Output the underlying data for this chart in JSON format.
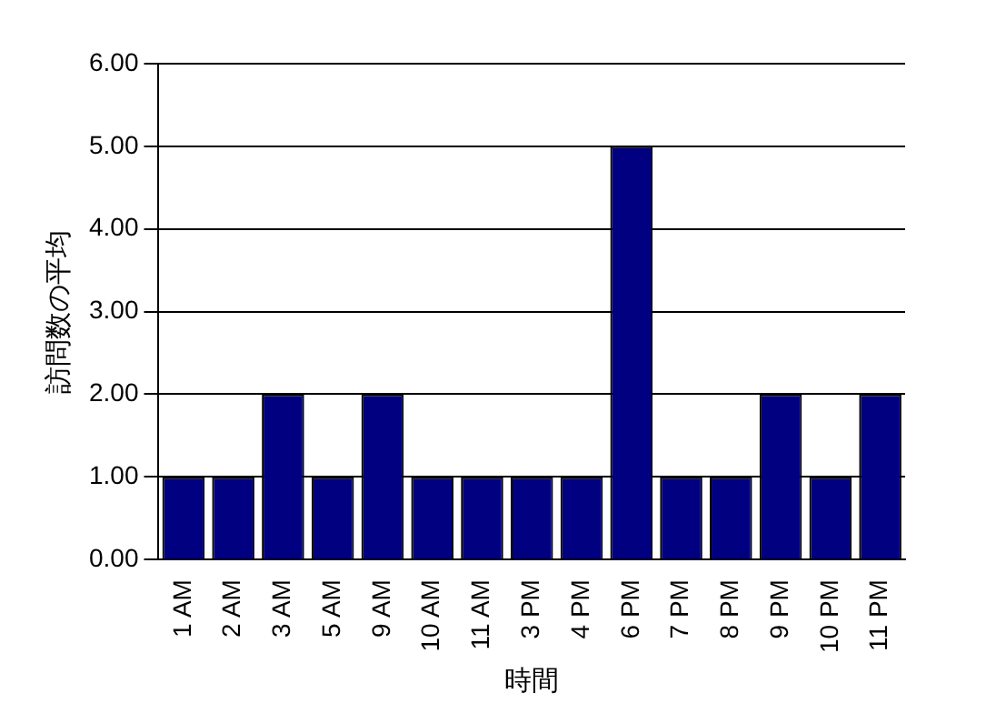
{
  "chart_data": {
    "type": "bar",
    "xlabel": "時間",
    "ylabel": "訪問数の平均",
    "categories": [
      "1 AM",
      "2 AM",
      "3 AM",
      "5 AM",
      "9 AM",
      "10 AM",
      "11 AM",
      "3 PM",
      "4 PM",
      "6 PM",
      "7 PM",
      "8 PM",
      "9 PM",
      "10 PM",
      "11 PM"
    ],
    "values": [
      1,
      1,
      2,
      1,
      2,
      1,
      1,
      1,
      1,
      5,
      1,
      1,
      2,
      1,
      2
    ],
    "color": "#000080",
    "ylim": [
      0,
      6
    ],
    "yticks": [
      {
        "value": 0,
        "label": "0.00"
      },
      {
        "value": 1,
        "label": "1.00"
      },
      {
        "value": 2,
        "label": "2.00"
      },
      {
        "value": 3,
        "label": "3.00"
      },
      {
        "value": 4,
        "label": "4.00"
      },
      {
        "value": 5,
        "label": "5.00"
      },
      {
        "value": 6,
        "label": "6.00"
      }
    ],
    "grid": "y",
    "legend": false
  }
}
